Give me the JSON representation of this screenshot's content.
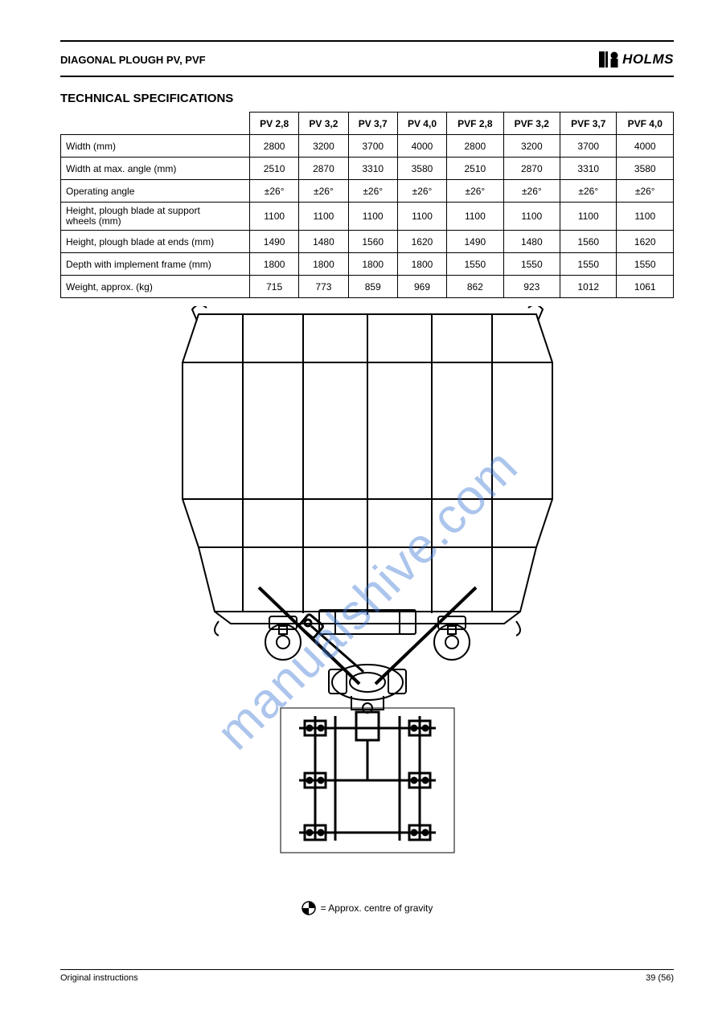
{
  "header": {
    "left": "DIAGONAL PLOUGH PV, PVF",
    "brand": "HOLMS"
  },
  "section_title": "TECHNICAL SPECIFICATIONS",
  "table": {
    "columns": [
      "",
      "PV 2,8",
      "PV 3,2",
      "PV 3,7",
      "PV 4,0",
      "PVF 2,8",
      "PVF 3,2",
      "PVF 3,7",
      "PVF 4,0"
    ],
    "rows": [
      {
        "label_lines": [
          "Width (mm)"
        ],
        "values": [
          "2800",
          "3200",
          "3700",
          "4000",
          "2800",
          "3200",
          "3700",
          "4000"
        ]
      },
      {
        "label_lines": [
          "Width at max. angle (mm)"
        ],
        "values": [
          "2510",
          "2870",
          "3310",
          "3580",
          "2510",
          "2870",
          "3310",
          "3580"
        ]
      },
      {
        "label_lines": [
          "Operating angle"
        ],
        "values": [
          "±26°",
          "±26°",
          "±26°",
          "±26°",
          "±26°",
          "±26°",
          "±26°",
          "±26°"
        ]
      },
      {
        "label_lines": [
          "Height, plough blade at support",
          "wheels (mm)"
        ],
        "values": [
          "1100",
          "1100",
          "1100",
          "1100",
          "1100",
          "1100",
          "1100",
          "1100"
        ]
      },
      {
        "label_lines": [
          "Height, plough blade at ends (mm)"
        ],
        "values": [
          "1490",
          "1480",
          "1560",
          "1620",
          "1490",
          "1480",
          "1560",
          "1620"
        ]
      },
      {
        "label_lines": [
          "Depth with implement frame (mm)"
        ],
        "values": [
          "1800",
          "1800",
          "1800",
          "1800",
          "1550",
          "1550",
          "1550",
          "1550"
        ]
      },
      {
        "label_lines": [
          "Weight, approx. (kg)"
        ],
        "values": [
          "715",
          "773",
          "859",
          "969",
          "862",
          "923",
          "1012",
          "1061"
        ]
      }
    ]
  },
  "cog_text": "= Approx. centre of gravity",
  "footer": {
    "left": "Original instructions",
    "right": "39 (56)"
  },
  "style": {
    "page_bg": "#ffffff",
    "text_color": "#000000",
    "rule_color": "#000000",
    "watermark_color": "#4a7fd6",
    "watermark_opacity": 0.45,
    "diagram_stroke": "#000000"
  },
  "watermark": "manualshive.com"
}
